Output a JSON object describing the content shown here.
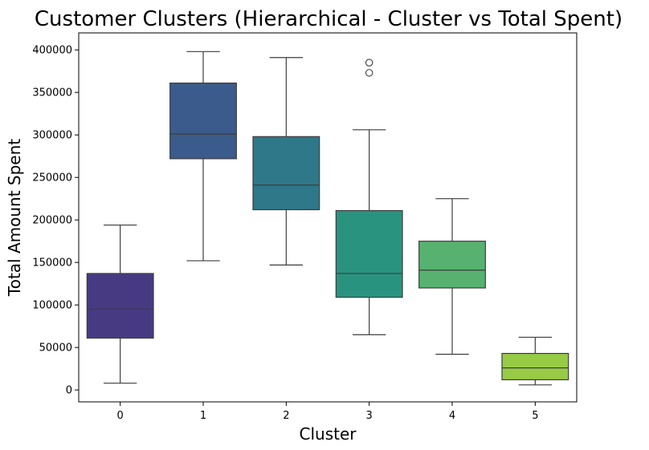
{
  "chart_data": {
    "type": "box",
    "title": "Customer Clusters (Hierarchical - Cluster vs Total Spent)",
    "xlabel": "Cluster",
    "ylabel": "Total Amount Spent",
    "ylim": [
      -14000,
      420000
    ],
    "yticks": [
      0,
      50000,
      100000,
      150000,
      200000,
      250000,
      300000,
      350000,
      400000
    ],
    "ytick_labels": [
      "0",
      "50000",
      "100000",
      "150000",
      "200000",
      "250000",
      "300000",
      "350000",
      "400000"
    ],
    "categories": [
      "0",
      "1",
      "2",
      "3",
      "4",
      "5"
    ],
    "grid": false,
    "boxes": [
      {
        "category": "0",
        "min": 8000,
        "q1": 61000,
        "median": 95000,
        "q3": 137000,
        "max": 194000,
        "outliers": [],
        "color": "#473A83"
      },
      {
        "category": "1",
        "min": 152000,
        "q1": 272000,
        "median": 301000,
        "q3": 361000,
        "max": 398000,
        "outliers": [],
        "color": "#3B5B8C"
      },
      {
        "category": "2",
        "min": 147000,
        "q1": 212000,
        "median": 241000,
        "q3": 298000,
        "max": 391000,
        "outliers": [],
        "color": "#2E788A"
      },
      {
        "category": "3",
        "min": 65000,
        "q1": 109000,
        "median": 137000,
        "q3": 211000,
        "max": 306000,
        "outliers": [
          373000,
          385000
        ],
        "color": "#2A9380"
      },
      {
        "category": "4",
        "min": 42000,
        "q1": 120000,
        "median": 141000,
        "q3": 175000,
        "max": 225000,
        "outliers": [],
        "color": "#57B26F"
      },
      {
        "category": "5",
        "min": 6000,
        "q1": 12000,
        "median": 26000,
        "q3": 43000,
        "max": 62000,
        "outliers": [],
        "color": "#97CB45"
      }
    ]
  }
}
